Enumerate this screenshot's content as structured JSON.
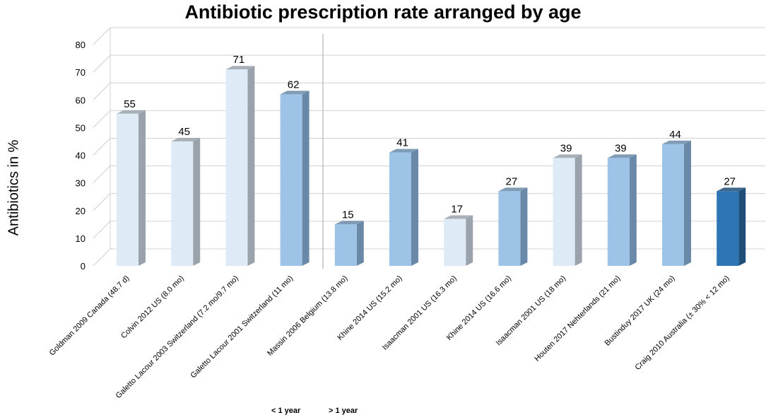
{
  "chart_data": {
    "type": "bar",
    "title": "Antibiotic prescription rate arranged by age",
    "xlabel": "",
    "ylabel": "Antibiotics in %",
    "ylim": [
      0,
      80
    ],
    "yticks": [
      0,
      10,
      20,
      30,
      40,
      50,
      60,
      70,
      80
    ],
    "grid": true,
    "categories": [
      "Goldman 2009 Canada (48.7 d)",
      "Colvin 2012 US (8.0 mo)",
      "Galetto Lacour 2003 Switzerland (7.2 mo/9.7 mo)",
      "Galetto Lacour 2001 Switzerland (11 mo)",
      "Massin 2006 Belgium (13.8 mo)",
      "Khine 2014 US (15.2 mo)",
      "Isaacman 2001 US (16.3 mo)",
      "Khine 2014 US (16.6 mo)",
      "Isaacman 2001 US (18 mo)",
      "Houten 2017 Nehterlands (21 mo)",
      "Bustinduy 2017 UK (24 mo)",
      "Craig 2010 Australia (± 30% < 12 mo)"
    ],
    "values": [
      55,
      45,
      71,
      62,
      15,
      41,
      17,
      27,
      39,
      39,
      44,
      27
    ],
    "bar_color_groups": [
      "light",
      "light",
      "light",
      "medium",
      "medium",
      "medium",
      "light",
      "medium",
      "light",
      "medium",
      "medium",
      "dark"
    ],
    "legend": [
      "< 1 year",
      "> 1 year"
    ],
    "legend_placement": "bottom-center"
  },
  "colors": {
    "light": "#deebf7",
    "light_side": "#9aa2ab",
    "medium": "#9dc3e6",
    "medium_side": "#6a89a8",
    "dark": "#2e75b6",
    "dark_side": "#1f4e79",
    "grid": "#d0d0d0",
    "divider": "#a6a6a6"
  }
}
